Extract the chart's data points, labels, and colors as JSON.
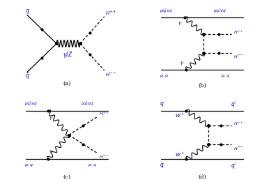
{
  "blue": "#0000cc",
  "black": "#000000",
  "bg": "#ffffff",
  "label_a": "(a)",
  "label_b": "(b)",
  "label_c": "(c)",
  "label_d": "(d)"
}
